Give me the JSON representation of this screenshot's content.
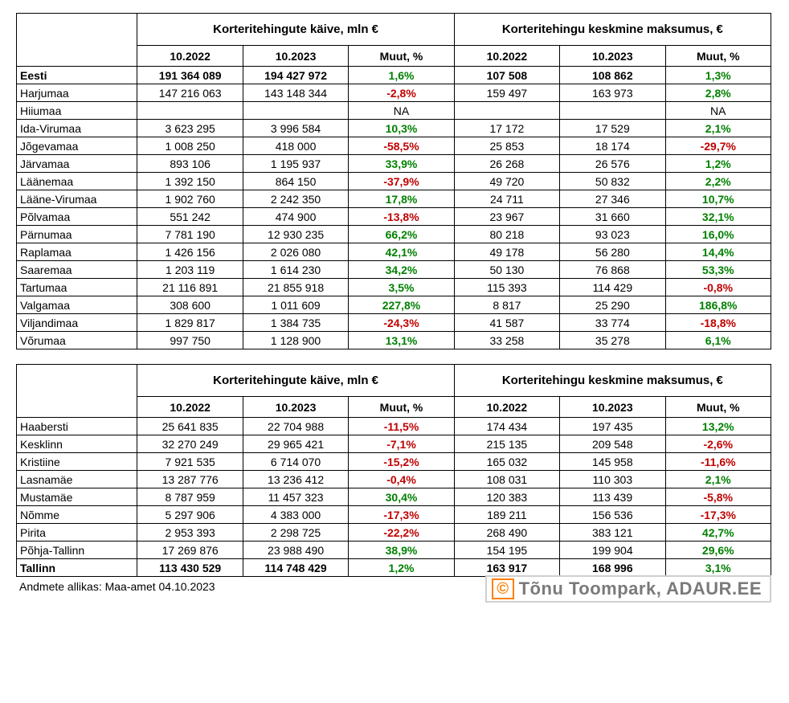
{
  "colors": {
    "positive": "#008000",
    "negative": "#c00000",
    "border": "#000000",
    "background": "#ffffff",
    "badge_text": "#7a7a7a",
    "badge_accent": "#ff7f00",
    "badge_border": "#d0d0d0"
  },
  "group_headers": {
    "turnover": "Korteritehingute käive, mln €",
    "avg_cost": "Korteritehingu keskmine maksumus, €"
  },
  "sub_headers": {
    "y2022": "10.2022",
    "y2023": "10.2023",
    "change": "Muut, %"
  },
  "table1": {
    "rows": [
      {
        "label": "Eesti",
        "bold": true,
        "t22": "191 364 089",
        "t23": "194 427 972",
        "tc": "1,6%",
        "tc_sign": "pos",
        "a22": "107 508",
        "a23": "108 862",
        "ac": "1,3%",
        "ac_sign": "pos"
      },
      {
        "label": "Harjumaa",
        "t22": "147 216 063",
        "t23": "143 148 344",
        "tc": "-2,8%",
        "tc_sign": "neg",
        "a22": "159 497",
        "a23": "163 973",
        "ac": "2,8%",
        "ac_sign": "pos"
      },
      {
        "label": "Hiiumaa",
        "t22": "",
        "t23": "",
        "tc": "NA",
        "tc_sign": "na",
        "a22": "",
        "a23": "",
        "ac": "NA",
        "ac_sign": "na"
      },
      {
        "label": "Ida-Virumaa",
        "t22": "3 623 295",
        "t23": "3 996 584",
        "tc": "10,3%",
        "tc_sign": "pos",
        "a22": "17 172",
        "a23": "17 529",
        "ac": "2,1%",
        "ac_sign": "pos"
      },
      {
        "label": "Jõgevamaa",
        "t22": "1 008 250",
        "t23": "418 000",
        "tc": "-58,5%",
        "tc_sign": "neg",
        "a22": "25 853",
        "a23": "18 174",
        "ac": "-29,7%",
        "ac_sign": "neg"
      },
      {
        "label": "Järvamaa",
        "t22": "893 106",
        "t23": "1 195 937",
        "tc": "33,9%",
        "tc_sign": "pos",
        "a22": "26 268",
        "a23": "26 576",
        "ac": "1,2%",
        "ac_sign": "pos"
      },
      {
        "label": "Läänemaa",
        "t22": "1 392 150",
        "t23": "864 150",
        "tc": "-37,9%",
        "tc_sign": "neg",
        "a22": "49 720",
        "a23": "50 832",
        "ac": "2,2%",
        "ac_sign": "pos"
      },
      {
        "label": "Lääne-Virumaa",
        "t22": "1 902 760",
        "t23": "2 242 350",
        "tc": "17,8%",
        "tc_sign": "pos",
        "a22": "24 711",
        "a23": "27 346",
        "ac": "10,7%",
        "ac_sign": "pos"
      },
      {
        "label": "Põlvamaa",
        "t22": "551 242",
        "t23": "474 900",
        "tc": "-13,8%",
        "tc_sign": "neg",
        "a22": "23 967",
        "a23": "31 660",
        "ac": "32,1%",
        "ac_sign": "pos"
      },
      {
        "label": "Pärnumaa",
        "t22": "7 781 190",
        "t23": "12 930 235",
        "tc": "66,2%",
        "tc_sign": "pos",
        "a22": "80 218",
        "a23": "93 023",
        "ac": "16,0%",
        "ac_sign": "pos"
      },
      {
        "label": "Raplamaa",
        "t22": "1 426 156",
        "t23": "2 026 080",
        "tc": "42,1%",
        "tc_sign": "pos",
        "a22": "49 178",
        "a23": "56 280",
        "ac": "14,4%",
        "ac_sign": "pos"
      },
      {
        "label": "Saaremaa",
        "t22": "1 203 119",
        "t23": "1 614 230",
        "tc": "34,2%",
        "tc_sign": "pos",
        "a22": "50 130",
        "a23": "76 868",
        "ac": "53,3%",
        "ac_sign": "pos"
      },
      {
        "label": "Tartumaa",
        "t22": "21 116 891",
        "t23": "21 855 918",
        "tc": "3,5%",
        "tc_sign": "pos",
        "a22": "115 393",
        "a23": "114 429",
        "ac": "-0,8%",
        "ac_sign": "neg"
      },
      {
        "label": "Valgamaa",
        "t22": "308 600",
        "t23": "1 011 609",
        "tc": "227,8%",
        "tc_sign": "pos",
        "a22": "8 817",
        "a23": "25 290",
        "ac": "186,8%",
        "ac_sign": "pos"
      },
      {
        "label": "Viljandimaa",
        "t22": "1 829 817",
        "t23": "1 384 735",
        "tc": "-24,3%",
        "tc_sign": "neg",
        "a22": "41 587",
        "a23": "33 774",
        "ac": "-18,8%",
        "ac_sign": "neg"
      },
      {
        "label": "Võrumaa",
        "t22": "997 750",
        "t23": "1 128 900",
        "tc": "13,1%",
        "tc_sign": "pos",
        "a22": "33 258",
        "a23": "35 278",
        "ac": "6,1%",
        "ac_sign": "pos"
      }
    ]
  },
  "table2": {
    "rows": [
      {
        "label": "Haabersti",
        "t22": "25 641 835",
        "t23": "22 704 988",
        "tc": "-11,5%",
        "tc_sign": "neg",
        "a22": "174 434",
        "a23": "197 435",
        "ac": "13,2%",
        "ac_sign": "pos"
      },
      {
        "label": "Kesklinn",
        "t22": "32 270 249",
        "t23": "29 965 421",
        "tc": "-7,1%",
        "tc_sign": "neg",
        "a22": "215 135",
        "a23": "209 548",
        "ac": "-2,6%",
        "ac_sign": "neg"
      },
      {
        "label": "Kristiine",
        "t22": "7 921 535",
        "t23": "6 714 070",
        "tc": "-15,2%",
        "tc_sign": "neg",
        "a22": "165 032",
        "a23": "145 958",
        "ac": "-11,6%",
        "ac_sign": "neg"
      },
      {
        "label": "Lasnamäe",
        "t22": "13 287 776",
        "t23": "13 236 412",
        "tc": "-0,4%",
        "tc_sign": "neg",
        "a22": "108 031",
        "a23": "110 303",
        "ac": "2,1%",
        "ac_sign": "pos"
      },
      {
        "label": "Mustamäe",
        "t22": "8 787 959",
        "t23": "11 457 323",
        "tc": "30,4%",
        "tc_sign": "pos",
        "a22": "120 383",
        "a23": "113 439",
        "ac": "-5,8%",
        "ac_sign": "neg"
      },
      {
        "label": "Nõmme",
        "t22": "5 297 906",
        "t23": "4 383 000",
        "tc": "-17,3%",
        "tc_sign": "neg",
        "a22": "189 211",
        "a23": "156 536",
        "ac": "-17,3%",
        "ac_sign": "neg"
      },
      {
        "label": "Pirita",
        "t22": "2 953 393",
        "t23": "2 298 725",
        "tc": "-22,2%",
        "tc_sign": "neg",
        "a22": "268 490",
        "a23": "383 121",
        "ac": "42,7%",
        "ac_sign": "pos"
      },
      {
        "label": "Põhja-Tallinn",
        "t22": "17 269 876",
        "t23": "23 988 490",
        "tc": "38,9%",
        "tc_sign": "pos",
        "a22": "154 195",
        "a23": "199 904",
        "ac": "29,6%",
        "ac_sign": "pos"
      },
      {
        "label": "Tallinn",
        "bold": true,
        "t22": "113 430 529",
        "t23": "114 748 429",
        "tc": "1,2%",
        "tc_sign": "pos",
        "a22": "163 917",
        "a23": "168 996",
        "ac": "3,1%",
        "ac_sign": "pos"
      }
    ]
  },
  "source_text": "Andmete allikas: Maa-amet 04.10.2023",
  "badge": {
    "copyright": "©",
    "text": "Tõnu Toompark, ADAUR.EE"
  }
}
